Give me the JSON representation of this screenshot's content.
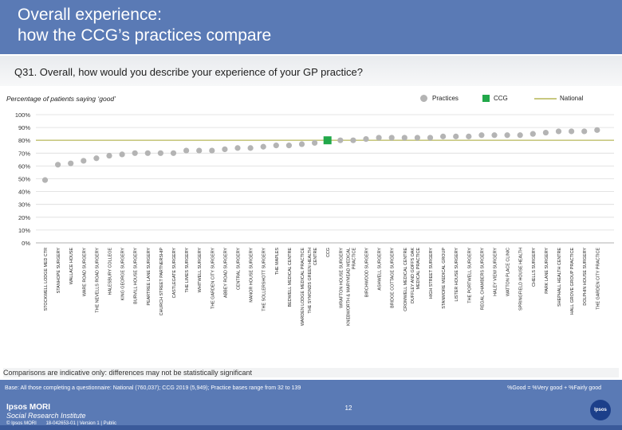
{
  "header": {
    "title": "Overall experience:\nhow the CCG’s practices compare"
  },
  "question": "Q31. Overall, how would you describe your experience of your GP practice?",
  "subtitle": "Percentage of patients saying ‘good’",
  "legend": {
    "practices": "Practices",
    "ccg": "CCG",
    "national": "National"
  },
  "colors": {
    "practice_dot": "#b4b4b4",
    "ccg_square": "#22a84a",
    "national_line": "#c8c880",
    "header_bg": "#5a7ab5"
  },
  "chart_data": {
    "type": "scatter",
    "title": "",
    "ylabel": "Percentage of patients saying ‘good’",
    "ylim": [
      0,
      100
    ],
    "yticks": [
      "0%",
      "10%",
      "20%",
      "30%",
      "40%",
      "50%",
      "60%",
      "70%",
      "80%",
      "90%",
      "100%"
    ],
    "national": 80,
    "categories": [
      "STOCKWELL LODGE MED CTR",
      "STANHOPE SURGERY",
      "WALLACE HOUSE",
      "WARE ROAD SURGERY",
      "THE NEVELLS ROAD SURGERY",
      "HALESBURY COLLEGE",
      "KING GEORGE SURGERY",
      "BURVILL HOUSE SURGERY",
      "PEARTREE LANE SURGERY",
      "CHURCH STREET PARTNERSHIP",
      "CASTLEGATE SURGERY",
      "THE LIMES SURGERY",
      "WHITWELL SURGERY",
      "THE GARDEN CITY SURGERY",
      "ABBEY ROAD SURGERY",
      "CENTRAL SURGERY",
      "MANOR HOUSE SURGERY",
      "THE SOLLERSHOTT SURGERY",
      "THE MAPLES",
      "BEDWELL MEDICAL CENTRE",
      "WARDEN LODGE MEDICAL PRACTICE",
      "THE SYMONDS GREEN HEALTH CENTRE",
      "CCG",
      "WRAFTON HOUSE SURGERY",
      "KNEBWORTH & MARYMEAD MEDICAL PRACTICE",
      "BIRCHWOOD SURGERY",
      "ASHWELL SURGERY",
      "BRIDGE COTTAGE SURGERY",
      "CROMWELL MEDICAL CENTRE",
      "DUFFLEY AND GOFFS OAK MEDICAL PRACTICE",
      "HIGH STREET SURGERY",
      "STANMORE MEDICAL GROUP",
      "LISTER HOUSE SURGERY",
      "THE PORTWELL SURGERY",
      "REGAL CHAMBERS SURGERY",
      "HALEY VIEW SURGERY",
      "WATTON PLACE CLINIC",
      "SPRINGFIELD HOUSE HEALTH",
      "CHELLS SURGERY",
      "PARK LANE SURGERY",
      "SHEPHALL HEALTH CENTRE",
      "HALL GROVE GROUP PRACTICE",
      "DOLPHIN HOUSE SURGERY",
      "THE GARDEN CITY PRACTICE"
    ],
    "values": [
      49,
      61,
      62,
      64,
      66,
      68,
      69,
      70,
      70,
      70,
      70,
      72,
      72,
      72,
      73,
      74,
      74,
      75,
      76,
      76,
      77,
      78,
      80,
      80,
      80,
      81,
      82,
      82,
      82,
      82,
      82,
      83,
      83,
      83,
      84,
      84,
      84,
      84,
      85,
      86,
      87,
      87,
      87,
      88
    ],
    "ccg_index": 22
  },
  "note": "Comparisons are indicative only: differences may not be statistically significant",
  "footer": {
    "base": "Base: All those completing a questionnaire: National (760,037); CCG 2019 (5,949); Practice bases range from 32 to 139",
    "calc": "%Good = %Very good + %Fairly good",
    "logo_line1": "Ipsos MORI",
    "logo_line2": "Social Research Institute",
    "copyright": "© Ipsos MORI",
    "job": "18-042653-01 | Version 1 | Public",
    "page": "12",
    "brand": "Ipsos"
  }
}
